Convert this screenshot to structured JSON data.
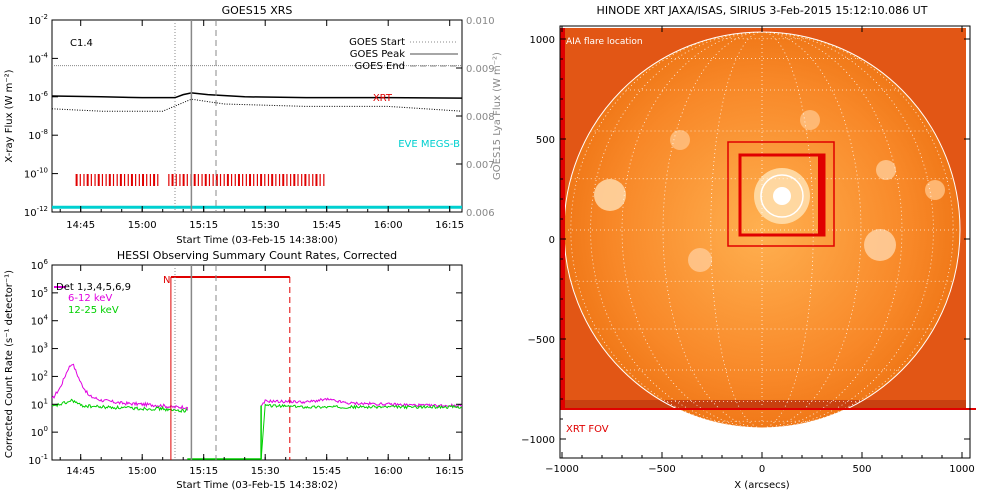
{
  "panels": {
    "goes": {
      "title": "GOES15 XRS",
      "xlabel": "Start Time (03-Feb-15 14:38:00)",
      "ylabel_left": "X-ray Flux (W m⁻²)",
      "ylabel_right": "GOES15 Lya Flux (W m⁻²)",
      "flare_class": "C1.4",
      "legend": [
        "GOES Start",
        "GOES Peak",
        "GOES End"
      ],
      "label_xrt": "XRT",
      "label_eve": "EVE MEGS-B",
      "xticks": [
        "14:45",
        "15:00",
        "15:15",
        "15:30",
        "15:45",
        "16:00",
        "16:15"
      ],
      "yticks_left_exp": [
        "-12",
        "-10",
        "-8",
        "-6",
        "-4",
        "-2"
      ],
      "yticks_right": [
        "0.006",
        "0.007",
        "0.008",
        "0.009",
        "0.010"
      ]
    },
    "hessi": {
      "title": "HESSI Observing Summary Count Rates, Corrected",
      "xlabel": "Start Time (03-Feb-15 14:38:02)",
      "ylabel": "Corrected Count Rate (s⁻¹ detector⁻¹)",
      "night_label": "N",
      "legend": [
        {
          "label": "Det 1,3,4,5,6,9",
          "color": "#000000"
        },
        {
          "label": "6-12 keV",
          "color": "#e000e0"
        },
        {
          "label": "12-25 keV",
          "color": "#00d000"
        }
      ],
      "xticks": [
        "14:45",
        "15:00",
        "15:15",
        "15:30",
        "15:45",
        "16:00",
        "16:15"
      ],
      "yticks_exp": [
        "-1",
        "0",
        "1",
        "2",
        "3",
        "4",
        "5",
        "6"
      ]
    },
    "xrt": {
      "title": "HINODE XRT JAXA/ISAS, SIRIUS   3-Feb-2015 15:12:10.086 UT",
      "label_aia": "AIA flare location",
      "label_fov": "XRT FOV",
      "xlabel": "X (arcsecs)",
      "xticks": [
        "−1000",
        "−500",
        "0",
        "500",
        "1000"
      ],
      "yticks": [
        "1000",
        "500",
        "0",
        "−500",
        "−1000"
      ]
    }
  },
  "chart_data": [
    {
      "type": "line",
      "title": "GOES15 XRS",
      "xlabel": "Start Time (03-Feb-15 14:38:00)",
      "ylabel": "X-ray Flux (W m-2)",
      "ylabel_right": "GOES15 Lya Flux (W m-2)",
      "x_range": [
        "14:38",
        "16:18"
      ],
      "ylim": [
        1e-12,
        0.01
      ],
      "ylim_right": [
        0.006,
        0.01
      ],
      "log_y": true,
      "vlines": [
        {
          "label": "GOES Start",
          "time": "15:08",
          "style": "dotted"
        },
        {
          "label": "GOES Peak",
          "time": "15:12",
          "style": "solid"
        },
        {
          "label": "GOES End",
          "time": "15:18",
          "style": "dashed"
        }
      ],
      "series": [
        {
          "name": "XRT",
          "color": "#000000",
          "x": [
            "14:38",
            "14:50",
            "15:00",
            "15:08",
            "15:10",
            "15:12",
            "15:16",
            "15:25",
            "15:40",
            "16:00",
            "16:18"
          ],
          "y": [
            1.1e-06,
            1e-06,
            9e-07,
            9e-07,
            1.3e-06,
            1.6e-06,
            1.3e-06,
            1e-06,
            9e-07,
            9e-07,
            8.5e-07
          ]
        },
        {
          "name": "EVE MEGS-B",
          "color": "#00d0d0",
          "x": [
            "14:38",
            "16:18"
          ],
          "y": [
            0.0061,
            0.0061
          ]
        },
        {
          "name": "",
          "color": "#888888",
          "x": [
            "14:38",
            "15:15",
            "16:18"
          ],
          "y": [
            0.00905,
            0.00905,
            0.00905
          ]
        },
        {
          "name": "",
          "color": "#000000",
          "x": [
            "14:38",
            "14:50",
            "15:05",
            "15:12",
            "15:20",
            "15:40",
            "16:00",
            "16:18"
          ],
          "y": [
            0.00815,
            0.0081,
            0.0081,
            0.00835,
            0.00825,
            0.0082,
            0.0082,
            0.0081
          ]
        }
      ],
      "annotations": [
        "C1.4"
      ]
    },
    {
      "type": "line",
      "title": "HESSI Observing Summary Count Rates, Corrected",
      "xlabel": "Start Time (03-Feb-15 14:38:02)",
      "ylabel": "Corrected Count Rate (s-1 detector-1)",
      "x_range": [
        "14:38",
        "16:18"
      ],
      "ylim": [
        0.1,
        1000000.0
      ],
      "log_y": true,
      "vlines": [
        {
          "label": "GOES Start",
          "time": "15:08",
          "style": "dotted"
        },
        {
          "label": "GOES Peak",
          "time": "15:12",
          "style": "solid"
        },
        {
          "label": "GOES End",
          "time": "15:18",
          "style": "dashed"
        }
      ],
      "night_interval": [
        "15:07",
        "15:36"
      ],
      "series": [
        {
          "name": "6-12 keV",
          "color": "#e000e0",
          "x": [
            "14:38",
            "14:40",
            "14:42",
            "14:43",
            "14:45",
            "14:47",
            "14:50",
            "14:55",
            "15:00",
            "15:05",
            "15:07",
            "15:11",
            "15:29",
            "15:30",
            "15:40",
            "15:45",
            "15:50",
            "16:00",
            "16:10",
            "16:18"
          ],
          "y": [
            15,
            40,
            200,
            300,
            60,
            20,
            14,
            11,
            10,
            9,
            8,
            8,
            8,
            13,
            12,
            15,
            11,
            10,
            9,
            9
          ]
        },
        {
          "name": "12-25 keV",
          "color": "#00d000",
          "x": [
            "14:38",
            "14:40",
            "14:42",
            "14:43",
            "14:45",
            "14:50",
            "15:00",
            "15:05",
            "15:07",
            "15:11",
            "15:29",
            "15:30",
            "15:40",
            "15:50",
            "16:00",
            "16:10",
            "16:18"
          ],
          "y": [
            8,
            10,
            12,
            14,
            9,
            8,
            7,
            7,
            6,
            6,
            0.1,
            9,
            8,
            8,
            8,
            8,
            8
          ]
        }
      ]
    }
  ]
}
